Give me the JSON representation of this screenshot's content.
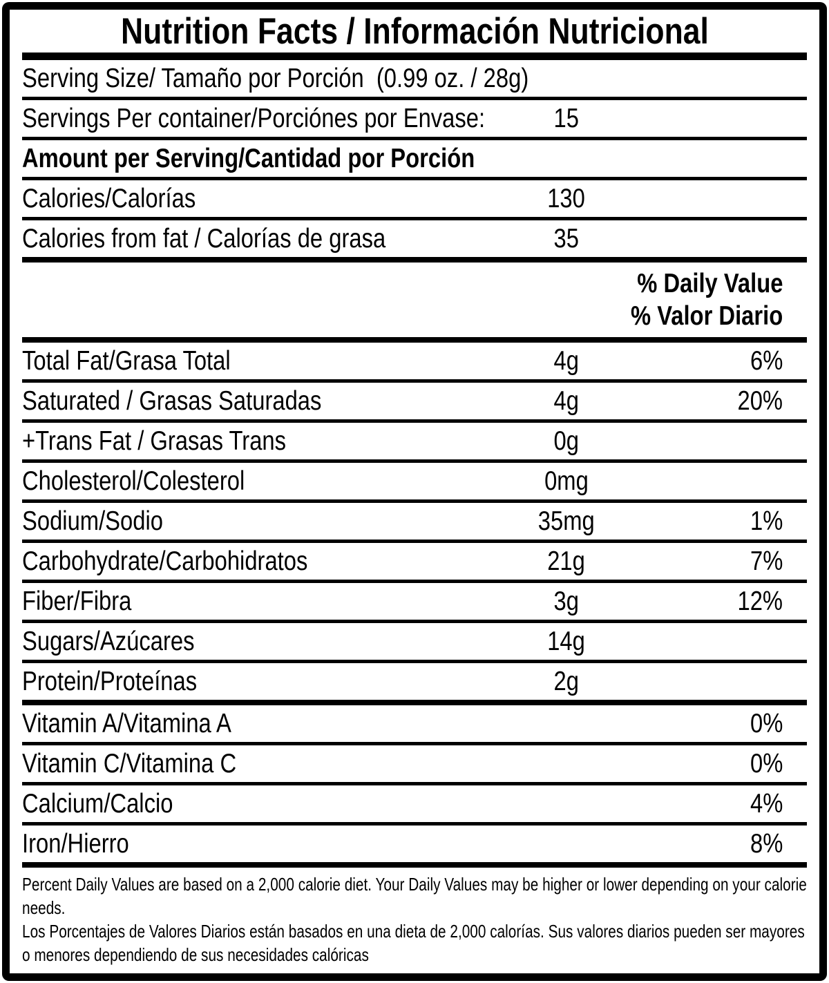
{
  "title": "Nutrition Facts / Información Nutricional",
  "colors": {
    "ink": "#000000",
    "paper": "#ffffff"
  },
  "top_rows": {
    "serving_size": {
      "label": "Serving Size/ Tamaño por Porción  (0.99 oz. / 28g)"
    },
    "servings_per_container": {
      "label": "Servings Per container/Porciónes por Envase:",
      "value": "15"
    },
    "amount_per_serving": {
      "label": "Amount per Serving/Cantidad por Porción"
    },
    "calories": {
      "label": "Calories/Calorías",
      "value": "130"
    },
    "calories_from_fat": {
      "label": "Calories from fat / Calorías de grasa",
      "value": "35"
    }
  },
  "daily_value_header": {
    "line1": "% Daily Value",
    "line2": "% Valor Diario"
  },
  "nutrients": [
    {
      "label": "Total Fat/Grasa Total",
      "amount": "4g",
      "percent": "6%",
      "sep": "thin"
    },
    {
      "label": "Saturated / Grasas Saturadas",
      "amount": "4g",
      "percent": "20%",
      "sep": "thin"
    },
    {
      "label": "+Trans Fat / Grasas Trans",
      "amount": "0g",
      "percent": "",
      "sep": "thin"
    },
    {
      "label": "Cholesterol/Colesterol",
      "amount": "0mg",
      "percent": "",
      "sep": "thin"
    },
    {
      "label": "Sodium/Sodio",
      "amount": "35mg",
      "percent": "1%",
      "sep": "thin"
    },
    {
      "label": "Carbohydrate/Carbohidratos",
      "amount": "21g",
      "percent": "7%",
      "sep": "thin"
    },
    {
      "label": "Fiber/Fibra",
      "amount": "3g",
      "percent": "12%",
      "sep": "thin"
    },
    {
      "label": "Sugars/Azúcares",
      "amount": "14g",
      "percent": "",
      "sep": "thin"
    },
    {
      "label": "Protein/Proteínas",
      "amount": "2g",
      "percent": "",
      "sep": "med"
    },
    {
      "label": "Vitamin A/Vitamina A",
      "amount": "",
      "percent": "0%",
      "sep": "thin"
    },
    {
      "label": "Vitamin C/Vitamina C",
      "amount": "",
      "percent": "0%",
      "sep": "thin"
    },
    {
      "label": "Calcium/Calcio",
      "amount": "",
      "percent": "4%",
      "sep": "thin"
    },
    {
      "label": "Iron/Hierro",
      "amount": "",
      "percent": "8%",
      "sep": "med"
    }
  ],
  "footnotes": {
    "english": "Percent Daily Values are based on a 2,000 calorie diet. Your Daily Values may be higher or lower depending on your calorie needs.",
    "spanish": "Los Porcentajes de Valores Diarios están basados en una dieta de 2,000 calorías. Sus valores diarios pueden ser mayores o menores dependiendo de sus necesidades calóricas"
  }
}
